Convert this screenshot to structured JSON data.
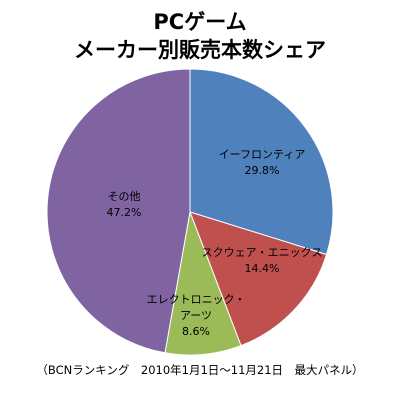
{
  "chart_data": {
    "type": "pie",
    "title_lines": [
      "PCゲーム",
      "メーカー別販売本数シェア"
    ],
    "slices": [
      {
        "label_lines": [
          "イーフロンティア"
        ],
        "value": 29.8,
        "value_label": "29.8%",
        "color": "#4F81BD"
      },
      {
        "label_lines": [
          "スクウェア・エニックス"
        ],
        "value": 14.4,
        "value_label": "14.4%",
        "color": "#C0504D"
      },
      {
        "label_lines": [
          "エレクトロニック・",
          "アーツ"
        ],
        "value": 8.6,
        "value_label": "8.6%",
        "color": "#9BBB59"
      },
      {
        "label_lines": [
          "その他"
        ],
        "value": 47.2,
        "value_label": "47.2%",
        "color": "#8064A2"
      }
    ],
    "footnote": "（BCNランキング　2010年1月1日～11月21日　最大パネル）"
  }
}
